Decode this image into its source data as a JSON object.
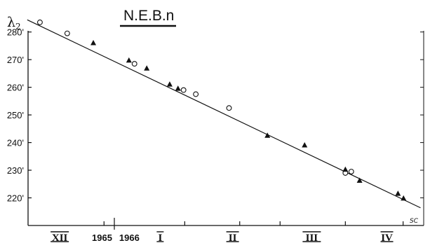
{
  "chart_data": {
    "type": "scatter",
    "title": "N.E.B.n",
    "ylabel_main": "λ",
    "ylabel_sub": "2",
    "signature": "SC",
    "ylim": [
      210,
      286
    ],
    "xlim": [
      0,
      100
    ],
    "y_ticks": [
      {
        "value": 220,
        "label": "220"
      },
      {
        "value": 230,
        "label": "230"
      },
      {
        "value": 240,
        "label": "240"
      },
      {
        "value": 250,
        "label": "250"
      },
      {
        "value": 260,
        "label": "260"
      },
      {
        "value": 270,
        "label": "270"
      },
      {
        "value": 280,
        "label": "280"
      }
    ],
    "x_ticks": [
      19.2,
      39.6,
      53.5,
      63.7,
      80.2,
      94.8
    ],
    "x_labels": [
      {
        "x": 8.0,
        "text": "XII",
        "kind": "month"
      },
      {
        "x": 18.7,
        "text": "1965",
        "kind": "year"
      },
      {
        "x": 25.6,
        "text": "1966",
        "kind": "year"
      },
      {
        "x": 33.4,
        "text": "I",
        "kind": "month"
      },
      {
        "x": 51.7,
        "text": "II",
        "kind": "month"
      },
      {
        "x": 71.7,
        "text": "III",
        "kind": "month"
      },
      {
        "x": 90.7,
        "text": "IV",
        "kind": "month"
      }
    ],
    "trend_line": {
      "x": [
        -0.2,
        99.2
      ],
      "y": [
        284.4,
        216.4
      ]
    },
    "series": [
      {
        "marker": "circle",
        "points": [
          {
            "x": 3.0,
            "y": 283.5
          },
          {
            "x": 9.9,
            "y": 279.5
          },
          {
            "x": 26.9,
            "y": 268.5
          },
          {
            "x": 39.3,
            "y": 259.0
          },
          {
            "x": 42.4,
            "y": 257.5
          },
          {
            "x": 50.8,
            "y": 252.5
          },
          {
            "x": 80.2,
            "y": 229.0
          },
          {
            "x": 81.7,
            "y": 229.5
          }
        ]
      },
      {
        "marker": "triangle",
        "points": [
          {
            "x": 16.5,
            "y": 276.0
          },
          {
            "x": 25.5,
            "y": 269.7
          },
          {
            "x": 30.0,
            "y": 266.8
          },
          {
            "x": 35.8,
            "y": 261.0
          },
          {
            "x": 37.9,
            "y": 259.5
          },
          {
            "x": 60.5,
            "y": 242.5
          },
          {
            "x": 69.9,
            "y": 239.0
          },
          {
            "x": 80.2,
            "y": 230.2
          },
          {
            "x": 83.8,
            "y": 226.2
          },
          {
            "x": 93.5,
            "y": 221.5
          },
          {
            "x": 94.9,
            "y": 219.8
          }
        ]
      }
    ]
  }
}
